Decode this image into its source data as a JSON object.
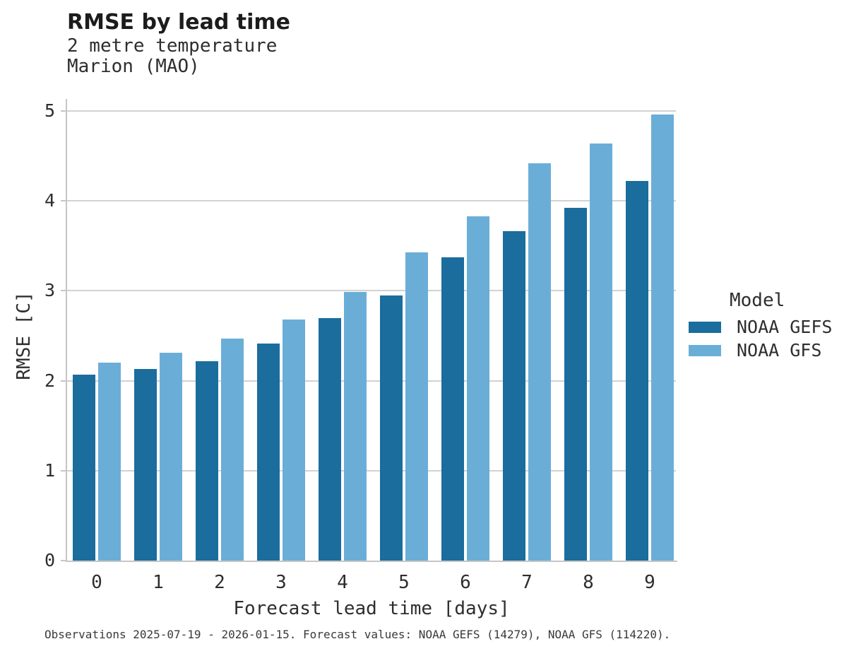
{
  "header": {
    "title": "RMSE by lead time",
    "subtitle_line1": "2 metre temperature",
    "subtitle_line2": "Marion (MAO)"
  },
  "chart_data": {
    "type": "bar",
    "title": "RMSE by lead time",
    "subtitle": [
      "2 metre temperature",
      "Marion (MAO)"
    ],
    "categories": [
      "0",
      "1",
      "2",
      "3",
      "4",
      "5",
      "6",
      "7",
      "8",
      "9"
    ],
    "series": [
      {
        "name": "NOAA GEFS",
        "color": "#1a6d9d",
        "values": [
          2.07,
          2.13,
          2.22,
          2.41,
          2.7,
          2.95,
          3.37,
          3.66,
          3.92,
          4.22
        ]
      },
      {
        "name": "NOAA GFS",
        "color": "#6aaed8",
        "values": [
          2.2,
          2.31,
          2.47,
          2.68,
          2.99,
          3.43,
          3.83,
          4.42,
          4.64,
          4.96
        ]
      }
    ],
    "xlabel": "Forecast lead time [days]",
    "ylabel": "RMSE [C]",
    "ylim": [
      0,
      5
    ],
    "yticks": [
      0,
      1,
      2,
      3,
      4,
      5
    ],
    "grid": true,
    "legend_title": "Model",
    "legend_position": "right"
  },
  "legend": {
    "title": "Model",
    "items": [
      {
        "label": "NOAA GEFS",
        "color": "#1a6d9d"
      },
      {
        "label": "NOAA GFS",
        "color": "#6aaed8"
      }
    ]
  },
  "axes": {
    "xlabel": "Forecast lead time [days]",
    "ylabel": "RMSE [C]"
  },
  "footer": {
    "caption": "Observations 2025-07-19 - 2026-01-15. Forecast values: NOAA GEFS (14279), NOAA GFS (114220)."
  },
  "colors": {
    "gefs": "#1a6d9d",
    "gfs": "#6aaed8",
    "axis": "#c6c6c6",
    "grid": "#d2d2d2"
  }
}
